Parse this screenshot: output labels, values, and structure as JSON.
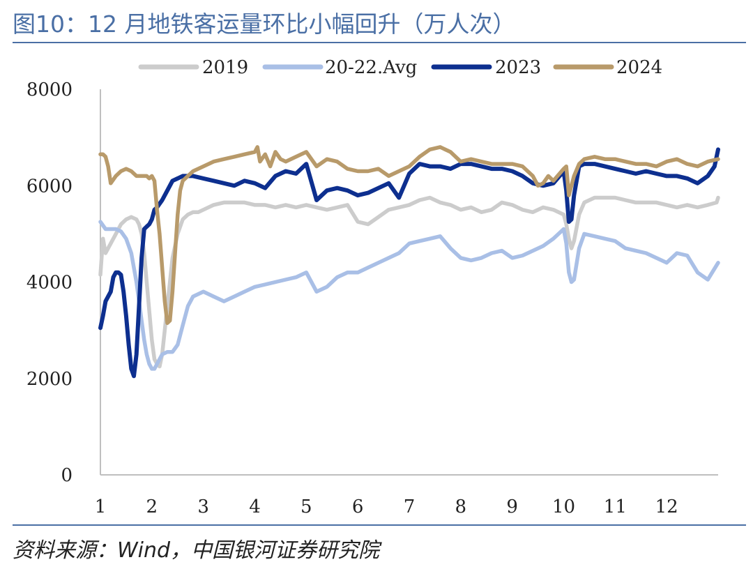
{
  "title": "图10：12 月地铁客运量环比小幅回升（万人次）",
  "source": "资料来源：Wind，中国银河证券研究院",
  "chart_data": {
    "type": "line",
    "title": "图10：12 月地铁客运量环比小幅回升（万人次）",
    "xlabel": "",
    "ylabel": "",
    "xlim": [
      1,
      13
    ],
    "ylim": [
      0,
      8000
    ],
    "x_ticks": [
      "1",
      "2",
      "3",
      "4",
      "5",
      "6",
      "7",
      "8",
      "9",
      "10",
      "11",
      "12"
    ],
    "y_ticks": [
      0,
      2000,
      4000,
      6000,
      8000
    ],
    "grid": false,
    "legend_position": "top",
    "colors": {
      "2019": "#cccccc",
      "20-22.Avg": "#a9bfe6",
      "2023": "#0d2f8f",
      "2024": "#b89a6a"
    },
    "series": [
      {
        "name": "2019",
        "color": "#cccccc",
        "x": [
          1.0,
          1.05,
          1.1,
          1.2,
          1.3,
          1.4,
          1.5,
          1.6,
          1.7,
          1.75,
          1.8,
          1.85,
          1.9,
          1.95,
          2.0,
          2.05,
          2.1,
          2.15,
          2.2,
          2.25,
          2.3,
          2.35,
          2.4,
          2.5,
          2.6,
          2.7,
          2.8,
          2.9,
          3.0,
          3.2,
          3.4,
          3.6,
          3.8,
          4.0,
          4.2,
          4.4,
          4.6,
          4.8,
          5.0,
          5.2,
          5.4,
          5.6,
          5.8,
          6.0,
          6.2,
          6.4,
          6.6,
          6.8,
          7.0,
          7.2,
          7.4,
          7.6,
          7.8,
          8.0,
          8.2,
          8.4,
          8.6,
          8.8,
          9.0,
          9.2,
          9.4,
          9.6,
          9.8,
          10.0,
          10.05,
          10.1,
          10.15,
          10.2,
          10.3,
          10.4,
          10.6,
          10.8,
          11.0,
          11.2,
          11.4,
          11.6,
          11.8,
          12.0,
          12.2,
          12.4,
          12.6,
          12.8,
          12.97,
          13.0
        ],
        "y": [
          4150,
          4900,
          4600,
          4800,
          5000,
          5200,
          5300,
          5350,
          5300,
          5200,
          5000,
          4600,
          4000,
          3400,
          2800,
          2400,
          2300,
          2250,
          2500,
          3000,
          3500,
          4000,
          4500,
          5000,
          5300,
          5400,
          5450,
          5450,
          5500,
          5600,
          5650,
          5650,
          5650,
          5600,
          5600,
          5550,
          5600,
          5550,
          5600,
          5550,
          5500,
          5550,
          5600,
          5250,
          5200,
          5350,
          5500,
          5550,
          5600,
          5700,
          5750,
          5650,
          5600,
          5500,
          5550,
          5450,
          5500,
          5650,
          5600,
          5500,
          5450,
          5550,
          5500,
          5400,
          5200,
          4900,
          4700,
          4850,
          5400,
          5650,
          5750,
          5750,
          5750,
          5700,
          5650,
          5650,
          5650,
          5600,
          5550,
          5600,
          5550,
          5600,
          5650,
          5750
        ]
      },
      {
        "name": "20-22.Avg",
        "color": "#a9bfe6",
        "x": [
          1.0,
          1.1,
          1.2,
          1.3,
          1.4,
          1.5,
          1.6,
          1.65,
          1.7,
          1.75,
          1.8,
          1.85,
          1.9,
          1.95,
          2.0,
          2.05,
          2.1,
          2.15,
          2.2,
          2.3,
          2.4,
          2.5,
          2.6,
          2.7,
          2.8,
          3.0,
          3.2,
          3.4,
          3.6,
          3.8,
          4.0,
          4.2,
          4.4,
          4.6,
          4.8,
          5.0,
          5.2,
          5.4,
          5.6,
          5.8,
          6.0,
          6.2,
          6.4,
          6.6,
          6.8,
          7.0,
          7.2,
          7.4,
          7.6,
          7.8,
          8.0,
          8.2,
          8.4,
          8.6,
          8.8,
          9.0,
          9.2,
          9.4,
          9.6,
          9.8,
          10.0,
          10.05,
          10.1,
          10.15,
          10.2,
          10.3,
          10.4,
          10.6,
          10.8,
          11.0,
          11.2,
          11.4,
          11.6,
          11.8,
          12.0,
          12.2,
          12.4,
          12.6,
          12.8,
          13.0
        ],
        "y": [
          5250,
          5100,
          5100,
          5100,
          5050,
          4900,
          4600,
          4300,
          4000,
          3600,
          3200,
          2800,
          2500,
          2300,
          2200,
          2200,
          2300,
          2400,
          2500,
          2550,
          2550,
          2700,
          3100,
          3500,
          3700,
          3800,
          3700,
          3600,
          3700,
          3800,
          3900,
          3950,
          4000,
          4050,
          4100,
          4200,
          3800,
          3900,
          4100,
          4200,
          4200,
          4300,
          4400,
          4500,
          4600,
          4800,
          4850,
          4900,
          4950,
          4700,
          4500,
          4450,
          4500,
          4600,
          4650,
          4500,
          4550,
          4650,
          4750,
          4900,
          5100,
          4800,
          4200,
          4000,
          4050,
          4700,
          5000,
          4950,
          4900,
          4850,
          4700,
          4650,
          4600,
          4500,
          4400,
          4600,
          4550,
          4200,
          4050,
          4400
        ]
      },
      {
        "name": "2023",
        "color": "#0d2f8f",
        "x": [
          1.0,
          1.05,
          1.1,
          1.15,
          1.2,
          1.25,
          1.3,
          1.35,
          1.4,
          1.45,
          1.5,
          1.55,
          1.6,
          1.65,
          1.7,
          1.75,
          1.8,
          1.85,
          1.9,
          1.95,
          2.0,
          2.05,
          2.1,
          2.2,
          2.3,
          2.4,
          2.5,
          2.6,
          2.7,
          2.8,
          3.0,
          3.2,
          3.4,
          3.6,
          3.8,
          4.0,
          4.2,
          4.4,
          4.6,
          4.8,
          5.0,
          5.2,
          5.4,
          5.6,
          5.8,
          6.0,
          6.2,
          6.4,
          6.6,
          6.8,
          7.0,
          7.2,
          7.4,
          7.6,
          7.8,
          8.0,
          8.2,
          8.4,
          8.6,
          8.8,
          9.0,
          9.2,
          9.4,
          9.6,
          9.8,
          10.0,
          10.05,
          10.1,
          10.15,
          10.2,
          10.3,
          10.4,
          10.6,
          10.8,
          11.0,
          11.2,
          11.4,
          11.6,
          11.8,
          12.0,
          12.2,
          12.4,
          12.6,
          12.8,
          12.93,
          12.97,
          13.0
        ],
        "y": [
          3050,
          3300,
          3600,
          3700,
          3800,
          4100,
          4200,
          4200,
          4150,
          3800,
          3300,
          2700,
          2200,
          2050,
          2500,
          3500,
          4500,
          5100,
          5150,
          5200,
          5300,
          5500,
          5550,
          5700,
          5900,
          6100,
          6150,
          6200,
          6200,
          6200,
          6150,
          6100,
          6050,
          6000,
          6100,
          6050,
          5950,
          6200,
          6300,
          6250,
          6450,
          5700,
          5900,
          5950,
          5900,
          5800,
          5850,
          5950,
          6050,
          5750,
          6250,
          6450,
          6400,
          6400,
          6350,
          6450,
          6450,
          6400,
          6350,
          6350,
          6300,
          6200,
          6050,
          6000,
          6050,
          6300,
          5900,
          5250,
          5300,
          5800,
          6400,
          6450,
          6450,
          6400,
          6350,
          6300,
          6250,
          6300,
          6250,
          6200,
          6200,
          6150,
          6050,
          6200,
          6400,
          6600,
          6750
        ]
      },
      {
        "name": "2024",
        "color": "#b89a6a",
        "x": [
          1.0,
          1.05,
          1.1,
          1.15,
          1.2,
          1.3,
          1.4,
          1.5,
          1.6,
          1.7,
          1.8,
          1.9,
          1.95,
          2.0,
          2.05,
          2.1,
          2.15,
          2.2,
          2.25,
          2.3,
          2.35,
          2.4,
          2.45,
          2.5,
          2.55,
          2.6,
          2.65,
          2.7,
          2.8,
          3.0,
          3.2,
          3.4,
          3.6,
          3.8,
          4.0,
          4.05,
          4.1,
          4.2,
          4.3,
          4.4,
          4.5,
          4.6,
          4.8,
          5.0,
          5.2,
          5.4,
          5.6,
          5.8,
          6.0,
          6.2,
          6.4,
          6.6,
          6.8,
          7.0,
          7.2,
          7.4,
          7.6,
          7.8,
          8.0,
          8.2,
          8.4,
          8.6,
          8.8,
          9.0,
          9.2,
          9.4,
          9.5,
          9.6,
          9.7,
          9.8,
          10.0,
          10.05,
          10.1,
          10.15,
          10.2,
          10.3,
          10.4,
          10.6,
          10.8,
          11.0,
          11.2,
          11.4,
          11.6,
          11.8,
          12.0,
          12.2,
          12.4,
          12.6,
          12.8,
          13.0
        ],
        "y": [
          6650,
          6650,
          6600,
          6400,
          6050,
          6200,
          6300,
          6350,
          6300,
          6200,
          6200,
          6200,
          6150,
          6200,
          6100,
          5500,
          5000,
          4300,
          3600,
          3150,
          3200,
          3800,
          4600,
          5400,
          5900,
          6100,
          6150,
          6200,
          6300,
          6400,
          6500,
          6550,
          6600,
          6650,
          6700,
          6800,
          6500,
          6650,
          6400,
          6700,
          6550,
          6500,
          6600,
          6700,
          6400,
          6550,
          6500,
          6350,
          6300,
          6300,
          6350,
          6200,
          6300,
          6400,
          6600,
          6750,
          6800,
          6700,
          6500,
          6550,
          6500,
          6450,
          6450,
          6450,
          6400,
          6200,
          6000,
          6050,
          6200,
          6100,
          6350,
          6400,
          5800,
          6000,
          6200,
          6450,
          6550,
          6600,
          6550,
          6550,
          6500,
          6450,
          6450,
          6400,
          6500,
          6550,
          6450,
          6400,
          6500,
          6550
        ]
      }
    ]
  }
}
